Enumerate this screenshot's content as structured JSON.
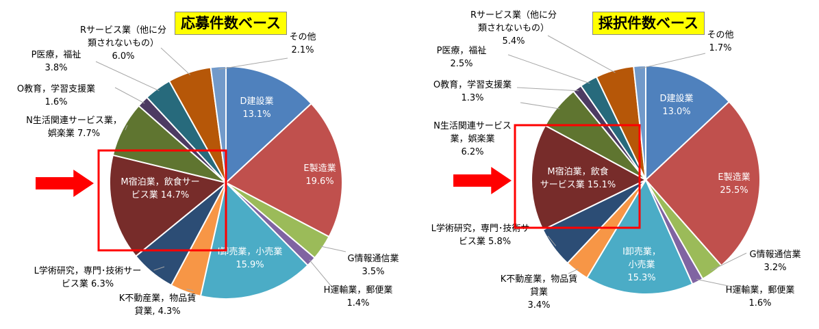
{
  "chart_data": [
    {
      "type": "pie",
      "title": "応募件数ベース",
      "unit": "%",
      "slices": [
        {
          "label": "D建設業",
          "value": 13.1,
          "color": "#4f81bd",
          "label_inside": true
        },
        {
          "label": "E製造業",
          "value": 19.6,
          "color": "#c0504d",
          "label_inside": true
        },
        {
          "label": "G情報通信業",
          "value": 3.5,
          "color": "#9bbb59",
          "label_inside": false
        },
        {
          "label": "H運輸業，郵便業",
          "value": 1.4,
          "color": "#8064a2",
          "label_inside": false
        },
        {
          "label": "I卸売業，小売業",
          "value": 15.9,
          "color": "#4bacc6",
          "label_inside": true
        },
        {
          "label": "K不動産業，物品賃貸業",
          "value": 4.3,
          "color": "#f79646",
          "label_inside": false
        },
        {
          "label": "L学術研究，専門・技術サービス業",
          "value": 6.3,
          "color": "#2c4d75",
          "label_inside": false
        },
        {
          "label": "M宿泊業，飲食サービス業",
          "value": 14.7,
          "color": "#772c2a",
          "label_inside": true
        },
        {
          "label": "N生活関連サービス業，娯楽業",
          "value": 7.7,
          "color": "#5f7530",
          "label_inside": false
        },
        {
          "label": "O教育，学習支援業",
          "value": 1.6,
          "color": "#4d3b62",
          "label_inside": false
        },
        {
          "label": "P医療，福祉",
          "value": 3.8,
          "color": "#276a7c",
          "label_inside": false
        },
        {
          "label": "Rサービス業（他に分類されないもの）",
          "value": 6.0,
          "color": "#b65708",
          "label_inside": false
        },
        {
          "label": "その他",
          "value": 2.1,
          "color": "#729aca",
          "label_inside": false
        }
      ],
      "labels": [
        {
          "lines": [
            "D建設業",
            "13.1%"
          ]
        },
        {
          "lines": [
            "E製造業",
            "19.6%"
          ]
        },
        {
          "lines": [
            "G情報通信業",
            "3.5%"
          ]
        },
        {
          "lines": [
            "H運輸業，郵便業",
            "1.4%"
          ]
        },
        {
          "lines": [
            "I卸売業，小売業",
            "15.9%"
          ]
        },
        {
          "lines": [
            "K不動産業，物品賃",
            "貸業, 4.3%"
          ]
        },
        {
          "lines": [
            "L学術研究，専門･技術サー",
            "ビス業  6.3%"
          ]
        },
        {
          "lines": [
            "M宿泊業，飲食サー",
            "ビス業  14.7%"
          ]
        },
        {
          "lines": [
            "N生活関連サービス業，",
            "娯楽業  7.7%"
          ]
        },
        {
          "lines": [
            "O教育，学習支援業",
            "1.6%"
          ]
        },
        {
          "lines": [
            "P医療，福祉",
            "3.8%"
          ]
        },
        {
          "lines": [
            "Rサービス業（他に分",
            "類されないもの）",
            "6.0%"
          ]
        },
        {
          "lines": [
            "その他",
            "2.1%"
          ]
        }
      ],
      "highlighted_slice": "M宿泊業，飲食サービス業"
    },
    {
      "type": "pie",
      "title": "採択件数ベース",
      "unit": "%",
      "slices": [
        {
          "label": "D建設業",
          "value": 13.0,
          "color": "#4f81bd",
          "label_inside": true
        },
        {
          "label": "E製造業",
          "value": 25.5,
          "color": "#c0504d",
          "label_inside": true
        },
        {
          "label": "G情報通信業",
          "value": 3.2,
          "color": "#9bbb59",
          "label_inside": false
        },
        {
          "label": "H運輸業，郵便業",
          "value": 1.6,
          "color": "#8064a2",
          "label_inside": false
        },
        {
          "label": "I卸売業，小売業",
          "value": 15.3,
          "color": "#4bacc6",
          "label_inside": true
        },
        {
          "label": "K不動産業，物品賃貸業",
          "value": 3.4,
          "color": "#f79646",
          "label_inside": false
        },
        {
          "label": "L学術研究，専門・技術サービス業",
          "value": 5.8,
          "color": "#2c4d75",
          "label_inside": false
        },
        {
          "label": "M宿泊業，飲食サービス業",
          "value": 15.1,
          "color": "#772c2a",
          "label_inside": true
        },
        {
          "label": "N生活関連サービス業，娯楽業",
          "value": 6.2,
          "color": "#5f7530",
          "label_inside": false
        },
        {
          "label": "O教育，学習支援業",
          "value": 1.3,
          "color": "#4d3b62",
          "label_inside": false
        },
        {
          "label": "P医療，福祉",
          "value": 2.5,
          "color": "#276a7c",
          "label_inside": false
        },
        {
          "label": "Rサービス業（他に分類されないもの）",
          "value": 5.4,
          "color": "#b65708",
          "label_inside": false
        },
        {
          "label": "その他",
          "value": 1.7,
          "color": "#729aca",
          "label_inside": false
        }
      ],
      "labels": [
        {
          "lines": [
            "D建設業",
            "13.0%"
          ]
        },
        {
          "lines": [
            "E製造業",
            "25.5%"
          ]
        },
        {
          "lines": [
            "G情報通信業",
            "3.2%"
          ]
        },
        {
          "lines": [
            "H運輸業，郵便業",
            "1.6%"
          ]
        },
        {
          "lines": [
            "I卸売業，",
            "小売業",
            "15.3%"
          ]
        },
        {
          "lines": [
            "K不動産業，物品賃",
            "貸業",
            "3.4%"
          ]
        },
        {
          "lines": [
            "L学術研究，専門･技術サー",
            "ビス業  5.8%"
          ]
        },
        {
          "lines": [
            "M宿泊業，飲食",
            "サービス業  15.1%"
          ]
        },
        {
          "lines": [
            "N生活関連サービス",
            "業，娯楽業",
            "6.2%"
          ]
        },
        {
          "lines": [
            "O教育，学習支援業",
            "1.3%"
          ]
        },
        {
          "lines": [
            "P医療，福祉",
            "2.5%"
          ]
        },
        {
          "lines": [
            "Rサービス業（他に分",
            "類されないもの）",
            "5.4%"
          ]
        },
        {
          "lines": [
            "その他",
            "1.7%"
          ]
        }
      ],
      "highlighted_slice": "M宿泊業，飲食サービス業"
    }
  ],
  "colors": {
    "highlight_box": "#ff0000",
    "arrow": "#ff0000",
    "title_background": "#ffff00",
    "leader_line": "#a6a6a6"
  }
}
